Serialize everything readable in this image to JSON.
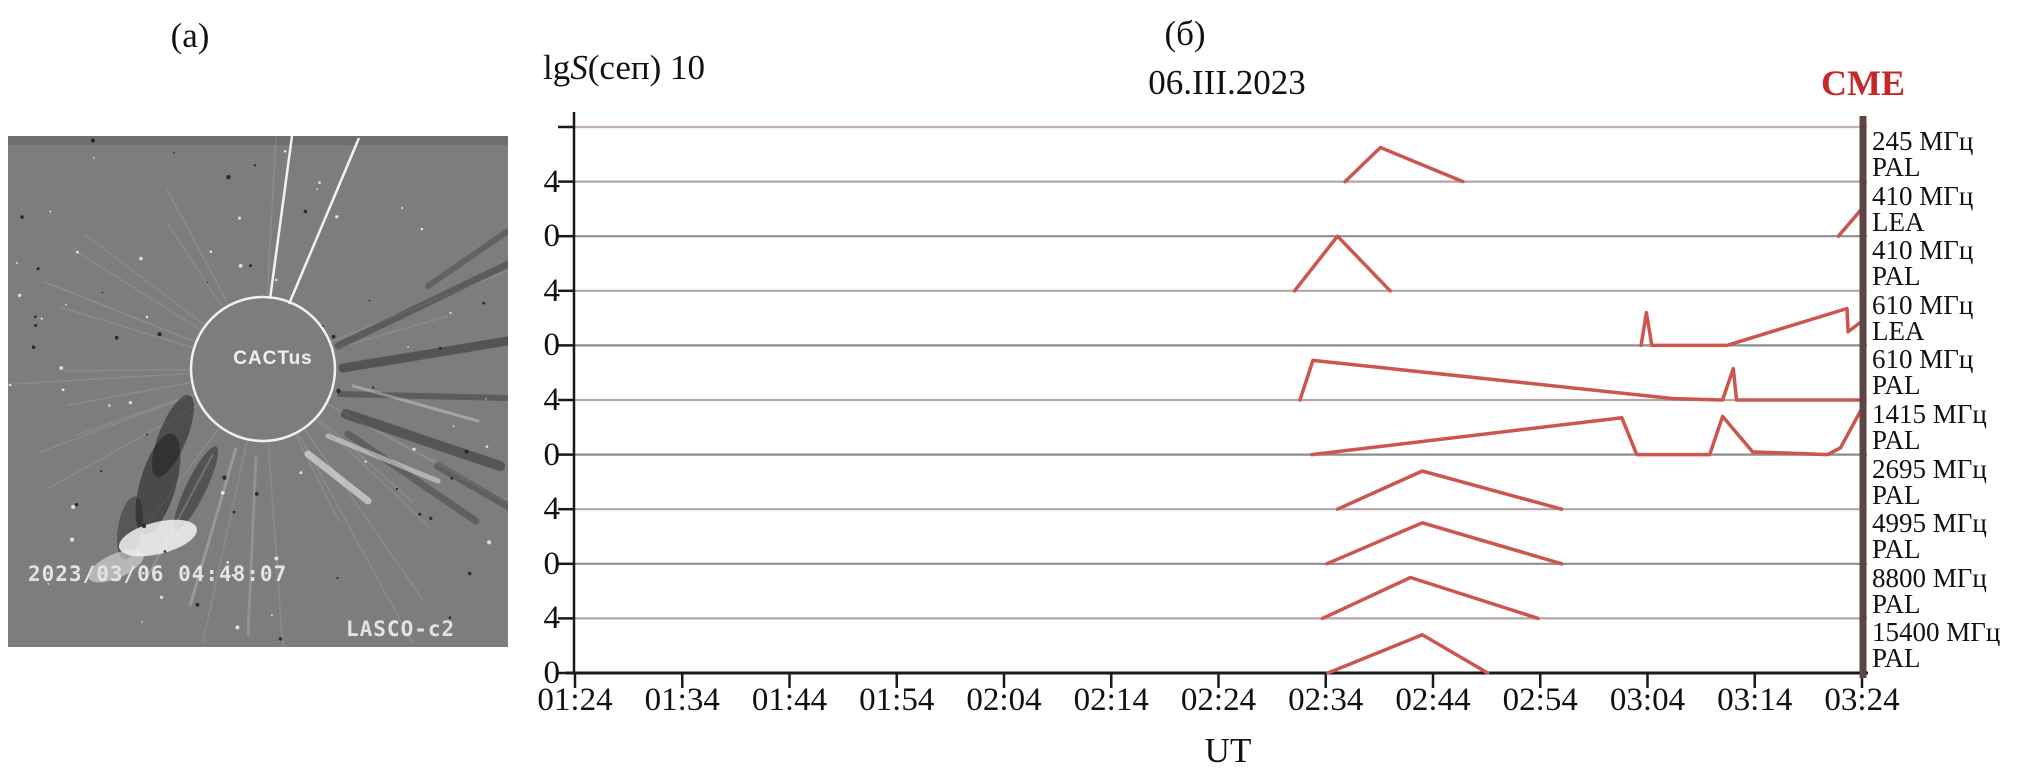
{
  "figure": {
    "panel_a_label": "(a)",
    "panel_b_label": "(б)"
  },
  "coronagraph": {
    "annotation": "CACTus",
    "timestamp": "2023/03/06 04:48:07",
    "instrument": "LASCO-c2"
  },
  "chart": {
    "y_title_prefix": "lg",
    "y_title_symbol": "S",
    "y_title_suffix": "(сеп) 10",
    "date_title": "06.III.2023",
    "cme_label": "CME",
    "x_axis_label": "UT"
  },
  "colors": {
    "trace": "#cc564e",
    "cme_text": "#c62828",
    "cme_bar": "#5d4545",
    "grid_zero_line": "#8d8d8d",
    "grid_four_line": "#b2a6a6",
    "grid_top_line": "#c3b3b3",
    "axis": "#1a1a1a"
  },
  "chart_data": {
    "type": "line",
    "title": "06.III.2023",
    "x_axis": {
      "label": "UT",
      "tick_labels": [
        "01:24",
        "01:34",
        "01:44",
        "01:54",
        "02:04",
        "02:14",
        "02:24",
        "02:34",
        "02:44",
        "02:54",
        "03:04",
        "03:14",
        "03:24"
      ],
      "start": "01:24",
      "end": "03:24",
      "minutes_span": 120,
      "tick_interval_minutes": 10
    },
    "y_axis": {
      "unit_label": "lgS(сеп)",
      "scale_note": "10",
      "units_per_band": 4,
      "tick_pattern": [
        "",
        "4",
        "0",
        "4",
        "0",
        "4",
        "0",
        "4",
        "0",
        "4",
        "0"
      ],
      "grid": true
    },
    "cme_marker_time": "03:24",
    "legend_position": "right",
    "channels": [
      {
        "frequency": "245 МГц",
        "station": "PAL",
        "baseline_line": 1,
        "points_min_val": [
          [
            71.8,
            0
          ],
          [
            75.1,
            2.5
          ],
          [
            82.8,
            0
          ]
        ]
      },
      {
        "frequency": "410 МГц",
        "station": "LEA",
        "baseline_line": 2,
        "points_min_val": [
          [
            117.8,
            0
          ],
          [
            120.2,
            2.2
          ]
        ]
      },
      {
        "frequency": "410 МГц",
        "station": "PAL",
        "baseline_line": 3,
        "points_min_val": [
          [
            67.1,
            0
          ],
          [
            71.1,
            4.0
          ],
          [
            76.0,
            0
          ]
        ]
      },
      {
        "frequency": "610 МГц",
        "station": "LEA",
        "baseline_line": 4,
        "points_min_val": [
          [
            99.4,
            0
          ],
          [
            99.9,
            2.4
          ],
          [
            100.4,
            0
          ],
          [
            107.4,
            0
          ],
          [
            118.6,
            2.7
          ],
          [
            118.7,
            1.0
          ],
          [
            120.2,
            1.9
          ]
        ]
      },
      {
        "frequency": "610 МГц",
        "station": "PAL",
        "baseline_line": 5,
        "points_min_val": [
          [
            67.6,
            0
          ],
          [
            68.8,
            2.9
          ],
          [
            102.4,
            0.1
          ],
          [
            107.0,
            0
          ],
          [
            108.0,
            2.3
          ],
          [
            108.3,
            0
          ],
          [
            120.0,
            0
          ]
        ]
      },
      {
        "frequency": "1415 МГц",
        "station": "PAL",
        "baseline_line": 6,
        "points_min_val": [
          [
            68.7,
            0
          ],
          [
            97.6,
            2.7
          ],
          [
            99.0,
            0
          ],
          [
            105.8,
            0
          ],
          [
            107.0,
            2.8
          ],
          [
            109.8,
            0.2
          ],
          [
            116.8,
            0
          ],
          [
            118.0,
            0.5
          ],
          [
            120.0,
            3.4
          ]
        ]
      },
      {
        "frequency": "2695 МГц",
        "station": "PAL",
        "baseline_line": 7,
        "points_min_val": [
          [
            71.1,
            0
          ],
          [
            79.0,
            2.8
          ],
          [
            92.0,
            0
          ]
        ]
      },
      {
        "frequency": "4995 МГц",
        "station": "PAL",
        "baseline_line": 8,
        "points_min_val": [
          [
            70.1,
            0
          ],
          [
            79.0,
            3.0
          ],
          [
            92.0,
            0
          ]
        ]
      },
      {
        "frequency": "8800 МГц",
        "station": "PAL",
        "baseline_line": 9,
        "points_min_val": [
          [
            69.7,
            0
          ],
          [
            77.9,
            3.0
          ],
          [
            89.8,
            0
          ]
        ]
      },
      {
        "frequency": "15400 МГц",
        "station": "PAL",
        "baseline_line": 10,
        "points_min_val": [
          [
            70.2,
            0
          ],
          [
            79.0,
            2.8
          ],
          [
            85.1,
            0
          ]
        ]
      }
    ]
  }
}
